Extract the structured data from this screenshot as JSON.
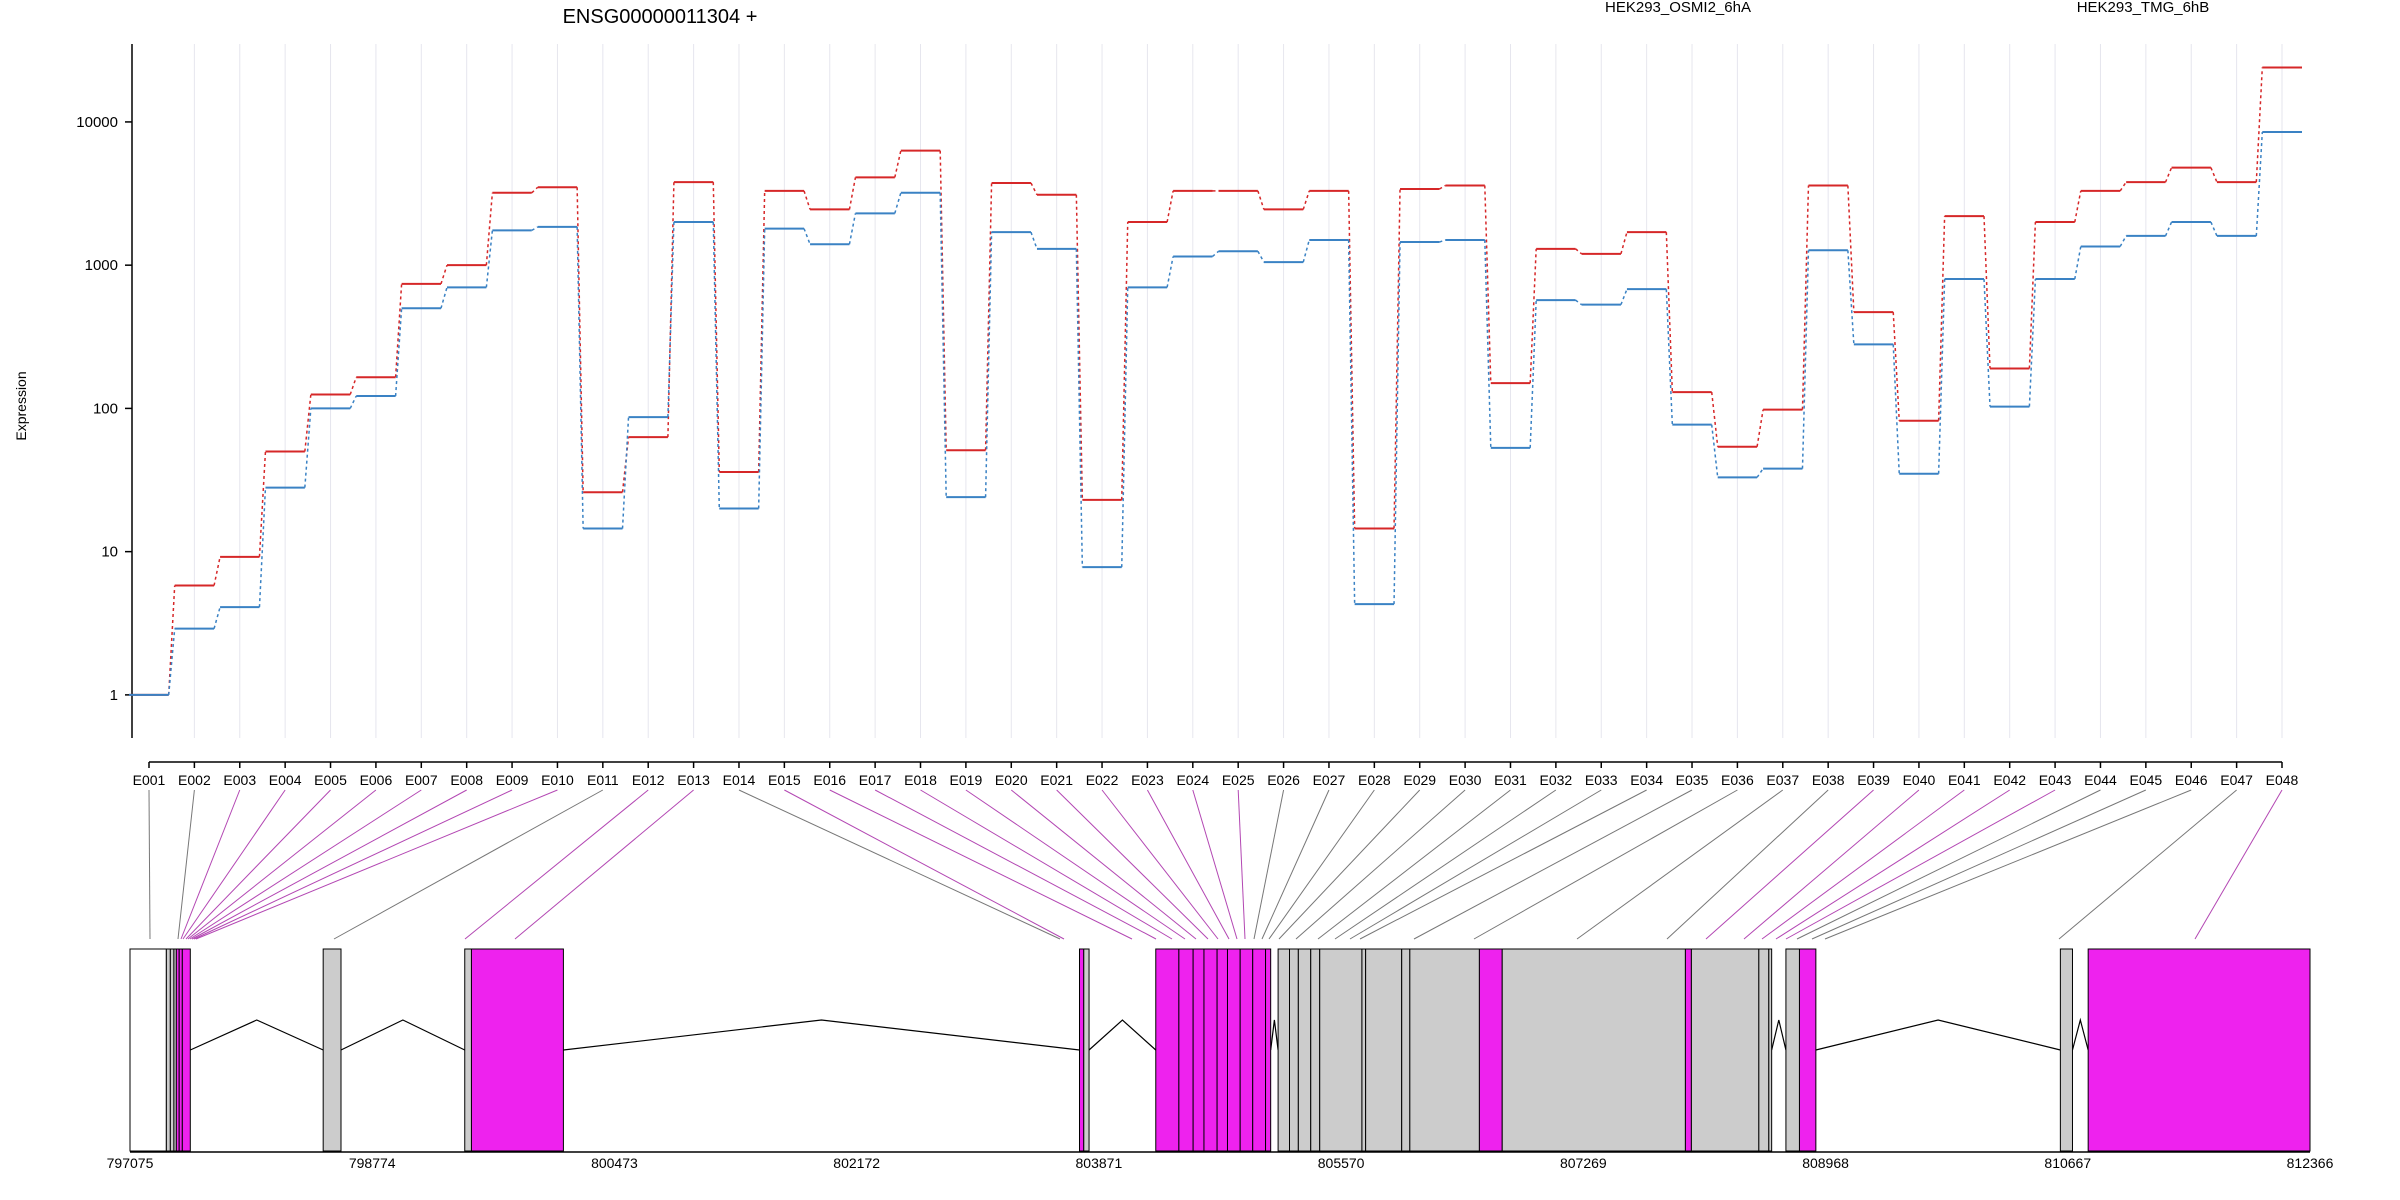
{
  "chart_data": {
    "type": "line",
    "title": "ENSG00000011304 +",
    "ylabel": "Expression",
    "yscale": "log",
    "ylim": [
      0.5,
      35000
    ],
    "ytick_values": [
      1,
      10,
      100,
      1000,
      10000
    ],
    "ytick_labels": [
      "1",
      "10",
      "100",
      "1000",
      "10000"
    ],
    "grid": "vertical",
    "legend_placement": "top",
    "categories": [
      "E001",
      "E002",
      "E003",
      "E004",
      "E005",
      "E006",
      "E007",
      "E008",
      "E009",
      "E010",
      "E011",
      "E012",
      "E013",
      "E014",
      "E015",
      "E016",
      "E017",
      "E018",
      "E019",
      "E020",
      "E021",
      "E022",
      "E023",
      "E024",
      "E025",
      "E026",
      "E027",
      "E028",
      "E029",
      "E030",
      "E031",
      "E032",
      "E033",
      "E034",
      "E035",
      "E036",
      "E037",
      "E038",
      "E039",
      "E040",
      "E041",
      "E042",
      "E043",
      "E044",
      "E045",
      "E046",
      "E047",
      "E048"
    ],
    "series": [
      {
        "name": "HEK293_OSMI2_6hA",
        "color": "#d62728",
        "values": [
          1,
          5.8,
          9.2,
          50,
          125,
          165,
          740,
          1000,
          3200,
          3500,
          26,
          63,
          3800,
          36,
          3300,
          2450,
          4100,
          6300,
          51,
          3750,
          3100,
          23,
          2000,
          3300,
          3300,
          2450,
          3300,
          14.5,
          3400,
          3600,
          150,
          1300,
          1200,
          1700,
          130,
          54,
          98,
          3600,
          470,
          82,
          2200,
          190,
          2000,
          3300,
          3800,
          4800,
          3800,
          24000
        ]
      },
      {
        "name": "HEK293_TMG_6hB",
        "color": "#3a82c4",
        "values": [
          1,
          2.9,
          4.1,
          28,
          100,
          122,
          500,
          700,
          1750,
          1850,
          14.5,
          87,
          2000,
          20,
          1800,
          1400,
          2300,
          3200,
          24,
          1700,
          1300,
          7.8,
          700,
          1150,
          1250,
          1050,
          1500,
          4.3,
          1450,
          1500,
          53,
          570,
          530,
          680,
          77,
          33,
          38,
          1270,
          280,
          35,
          800,
          103,
          800,
          1350,
          1600,
          2000,
          1600,
          8500
        ]
      }
    ],
    "gene_track": {
      "xlim": [
        797075,
        812366
      ],
      "tick_labels": [
        "797075",
        "798774",
        "800473",
        "802172",
        "803871",
        "805570",
        "807269",
        "808968",
        "810667",
        "812366"
      ],
      "exon_color_tested": "#cccccc",
      "exon_color_significant": "#ee22ee",
      "significant_bins": [
        "E003",
        "E004",
        "E005",
        "E006",
        "E007",
        "E008",
        "E009",
        "E010",
        "E012",
        "E013",
        "E015",
        "E016",
        "E017",
        "E018",
        "E019",
        "E020",
        "E021",
        "E022",
        "E023",
        "E024",
        "E025",
        "E039",
        "E040",
        "E041",
        "E042",
        "E043",
        "E048"
      ]
    }
  }
}
